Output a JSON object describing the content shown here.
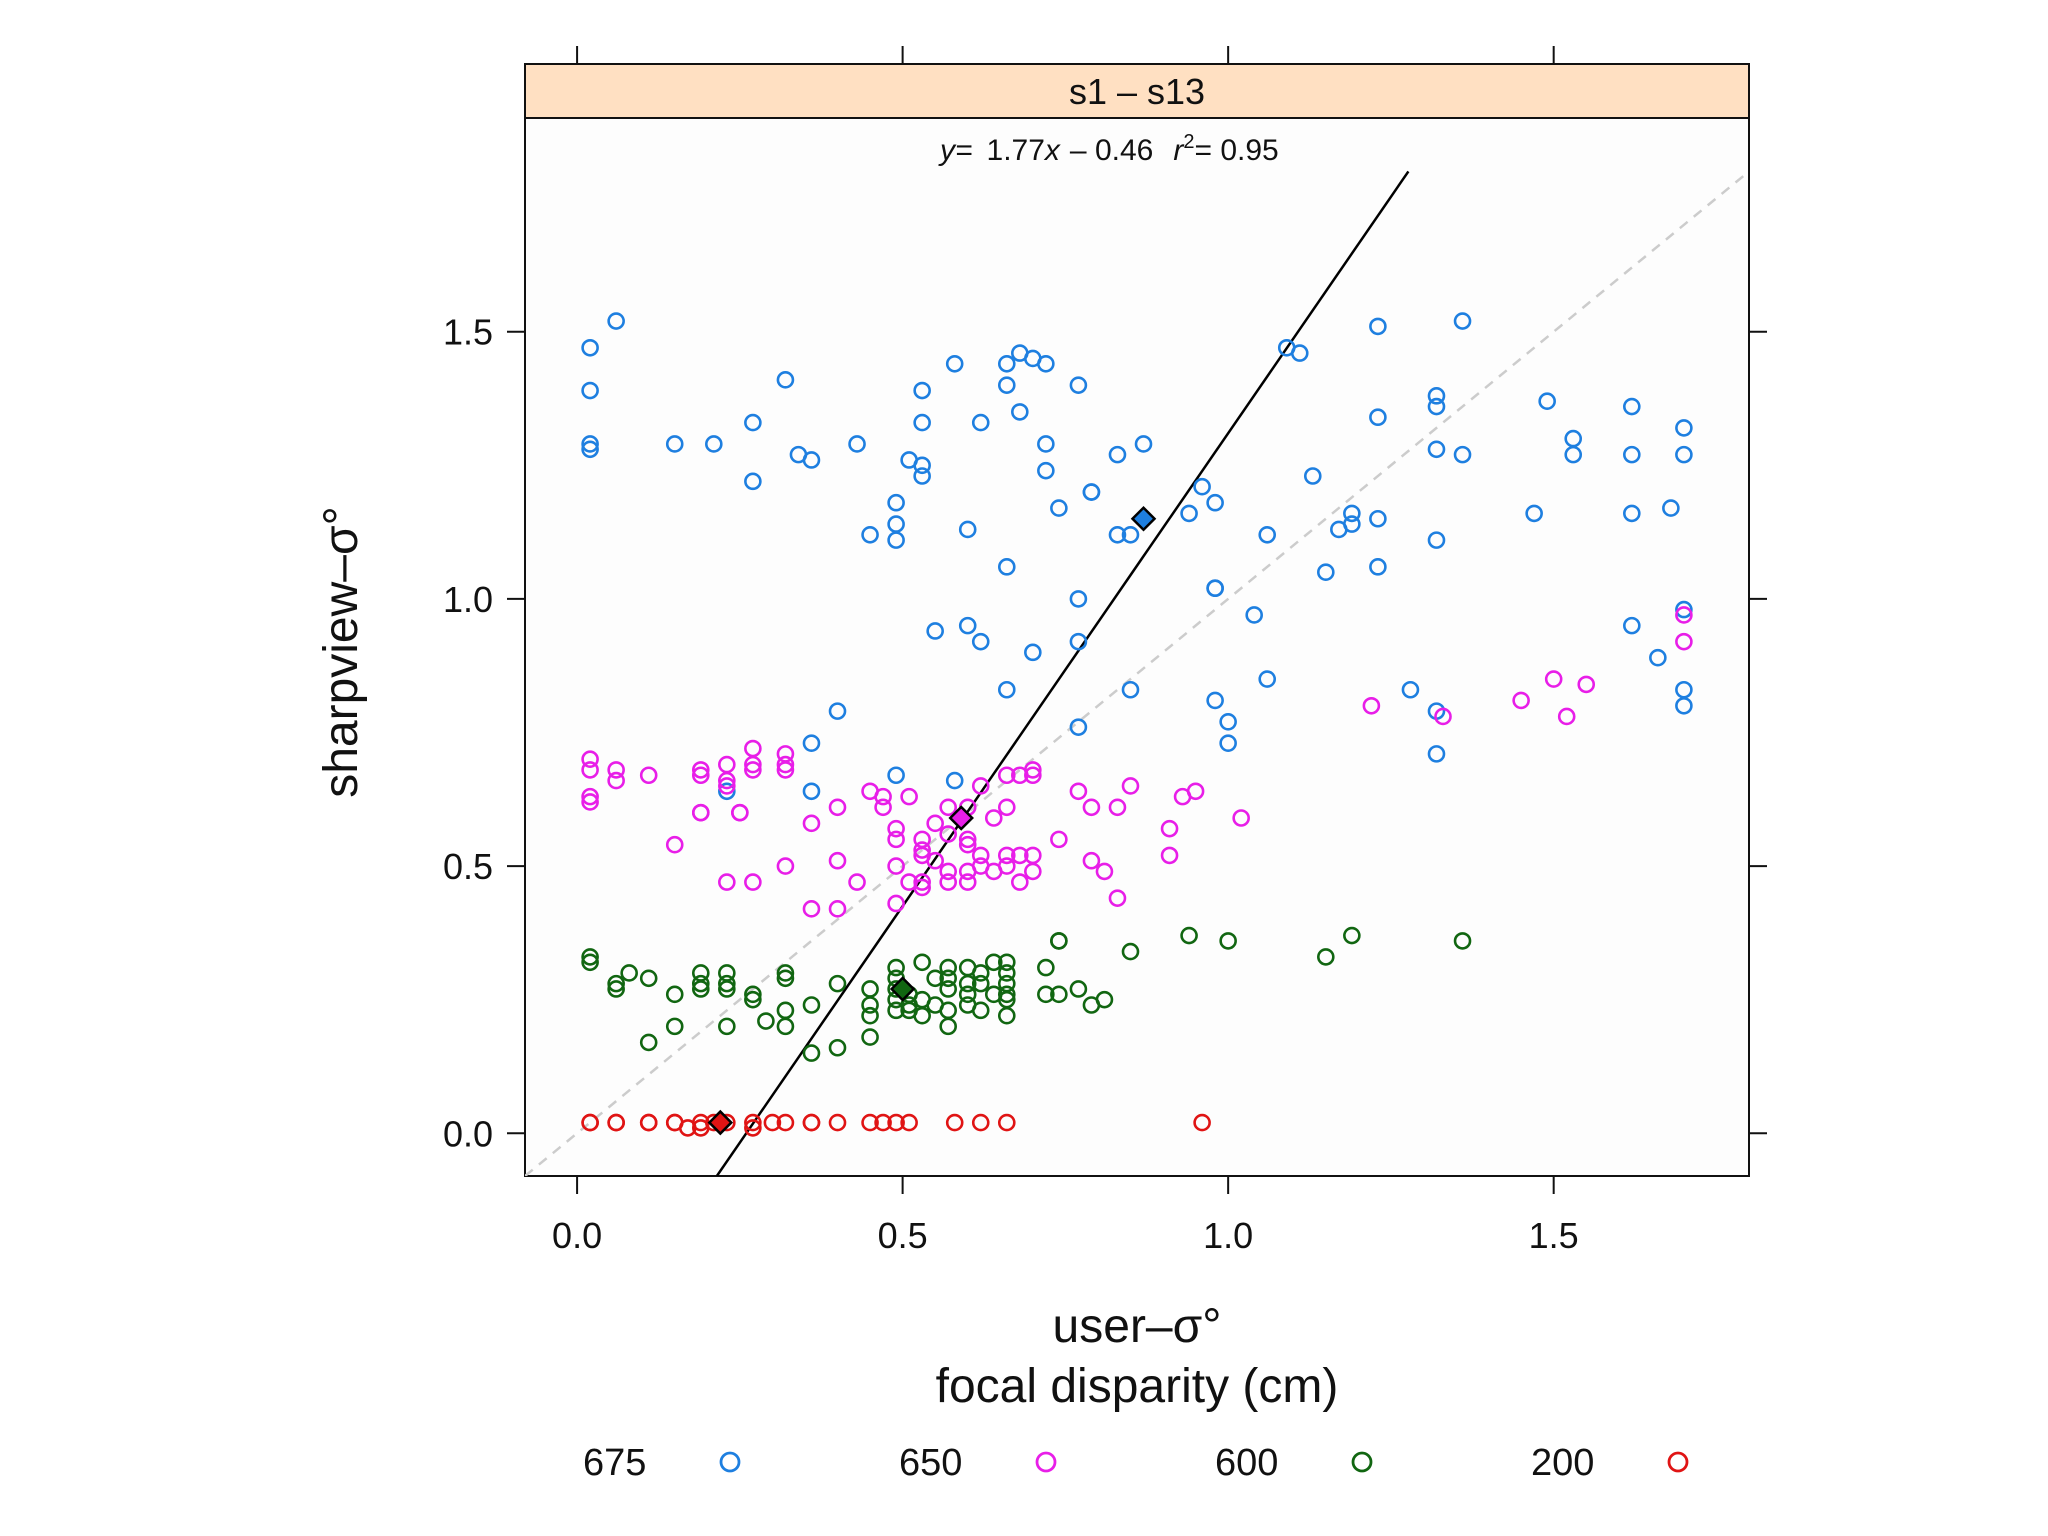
{
  "chart_data": {
    "type": "scatter",
    "strip_label": "s1 – s13",
    "equation": {
      "y_label": "y=",
      "expr": "1.77",
      "x_var": "x",
      "rest": "– 0.46",
      "r_sym": "r",
      "r_exp": "2",
      "r_val": "= 0.95"
    },
    "regression": {
      "slope": 1.77,
      "intercept": -0.46
    },
    "identity_line": true,
    "xlabel": "user–σ°",
    "xlabel2": "focal disparity (cm)",
    "ylabel": "sharpview–σ°",
    "xlim": [
      -0.08,
      1.8
    ],
    "ylim": [
      -0.08,
      1.9
    ],
    "xticks": [
      0.0,
      0.5,
      1.0,
      1.5
    ],
    "xtick_labels": [
      "0.0",
      "0.5",
      "1.0",
      "1.5"
    ],
    "yticks": [
      0.0,
      0.5,
      1.0,
      1.5
    ],
    "ytick_labels": [
      "0.0",
      "0.5",
      "1.0",
      "1.5"
    ],
    "series": [
      {
        "name": "675",
        "color": "#1e7fe0",
        "mean": [
          0.87,
          1.15
        ],
        "points": [
          [
            0.02,
            1.47
          ],
          [
            0.02,
            1.39
          ],
          [
            0.02,
            1.29
          ],
          [
            0.02,
            1.28
          ],
          [
            0.06,
            1.52
          ],
          [
            0.15,
            1.29
          ],
          [
            0.21,
            1.29
          ],
          [
            0.23,
            0.64
          ],
          [
            0.27,
            1.33
          ],
          [
            0.27,
            1.22
          ],
          [
            0.32,
            1.41
          ],
          [
            0.34,
            1.27
          ],
          [
            0.36,
            1.26
          ],
          [
            0.36,
            0.73
          ],
          [
            0.36,
            0.64
          ],
          [
            0.4,
            0.79
          ],
          [
            0.43,
            1.29
          ],
          [
            0.45,
            1.12
          ],
          [
            0.49,
            1.18
          ],
          [
            0.49,
            1.14
          ],
          [
            0.49,
            1.11
          ],
          [
            0.49,
            0.67
          ],
          [
            0.51,
            1.26
          ],
          [
            0.53,
            1.39
          ],
          [
            0.53,
            1.33
          ],
          [
            0.53,
            1.25
          ],
          [
            0.53,
            1.23
          ],
          [
            0.55,
            0.94
          ],
          [
            0.58,
            1.44
          ],
          [
            0.58,
            0.66
          ],
          [
            0.6,
            1.13
          ],
          [
            0.6,
            0.95
          ],
          [
            0.62,
            1.33
          ],
          [
            0.62,
            0.92
          ],
          [
            0.66,
            1.44
          ],
          [
            0.66,
            1.4
          ],
          [
            0.66,
            1.06
          ],
          [
            0.66,
            0.83
          ],
          [
            0.68,
            1.46
          ],
          [
            0.68,
            1.35
          ],
          [
            0.7,
            1.45
          ],
          [
            0.7,
            0.9
          ],
          [
            0.72,
            1.44
          ],
          [
            0.72,
            1.29
          ],
          [
            0.72,
            1.24
          ],
          [
            0.74,
            1.17
          ],
          [
            0.77,
            1.4
          ],
          [
            0.77,
            1.0
          ],
          [
            0.77,
            0.92
          ],
          [
            0.77,
            0.76
          ],
          [
            0.79,
            1.2
          ],
          [
            0.79,
            1.2
          ],
          [
            0.83,
            1.27
          ],
          [
            0.83,
            1.12
          ],
          [
            0.85,
            1.12
          ],
          [
            0.85,
            0.83
          ],
          [
            0.87,
            1.29
          ],
          [
            0.94,
            1.16
          ],
          [
            0.96,
            1.21
          ],
          [
            0.98,
            1.18
          ],
          [
            0.98,
            1.02
          ],
          [
            0.98,
            1.02
          ],
          [
            0.98,
            0.81
          ],
          [
            1.0,
            0.77
          ],
          [
            1.0,
            0.73
          ],
          [
            1.04,
            0.97
          ],
          [
            1.06,
            1.12
          ],
          [
            1.06,
            0.85
          ],
          [
            1.09,
            1.47
          ],
          [
            1.11,
            1.46
          ],
          [
            1.13,
            1.23
          ],
          [
            1.15,
            1.05
          ],
          [
            1.17,
            1.13
          ],
          [
            1.19,
            1.16
          ],
          [
            1.19,
            1.14
          ],
          [
            1.23,
            1.51
          ],
          [
            1.23,
            1.34
          ],
          [
            1.23,
            1.15
          ],
          [
            1.23,
            1.06
          ],
          [
            1.28,
            0.83
          ],
          [
            1.32,
            1.38
          ],
          [
            1.32,
            1.36
          ],
          [
            1.32,
            1.28
          ],
          [
            1.32,
            1.11
          ],
          [
            1.32,
            0.79
          ],
          [
            1.32,
            0.71
          ],
          [
            1.36,
            1.52
          ],
          [
            1.36,
            1.27
          ],
          [
            1.47,
            1.16
          ],
          [
            1.49,
            1.37
          ],
          [
            1.53,
            1.3
          ],
          [
            1.53,
            1.27
          ],
          [
            1.62,
            1.36
          ],
          [
            1.62,
            1.27
          ],
          [
            1.62,
            1.16
          ],
          [
            1.62,
            0.95
          ],
          [
            1.66,
            0.89
          ],
          [
            1.68,
            1.17
          ],
          [
            1.7,
            1.32
          ],
          [
            1.7,
            1.27
          ],
          [
            1.7,
            0.98
          ],
          [
            1.7,
            0.83
          ],
          [
            1.7,
            0.8
          ]
        ]
      },
      {
        "name": "650",
        "color": "#e81ee8",
        "mean": [
          0.59,
          0.59
        ],
        "points": [
          [
            0.02,
            0.7
          ],
          [
            0.02,
            0.68
          ],
          [
            0.02,
            0.63
          ],
          [
            0.02,
            0.62
          ],
          [
            0.06,
            0.68
          ],
          [
            0.06,
            0.66
          ],
          [
            0.11,
            0.67
          ],
          [
            0.15,
            0.54
          ],
          [
            0.19,
            0.68
          ],
          [
            0.19,
            0.67
          ],
          [
            0.19,
            0.6
          ],
          [
            0.19,
            0.6
          ],
          [
            0.23,
            0.69
          ],
          [
            0.23,
            0.66
          ],
          [
            0.23,
            0.65
          ],
          [
            0.23,
            0.47
          ],
          [
            0.25,
            0.6
          ],
          [
            0.25,
            0.6
          ],
          [
            0.27,
            0.72
          ],
          [
            0.27,
            0.69
          ],
          [
            0.27,
            0.68
          ],
          [
            0.27,
            0.47
          ],
          [
            0.32,
            0.71
          ],
          [
            0.32,
            0.69
          ],
          [
            0.32,
            0.68
          ],
          [
            0.32,
            0.5
          ],
          [
            0.36,
            0.58
          ],
          [
            0.36,
            0.42
          ],
          [
            0.4,
            0.61
          ],
          [
            0.4,
            0.51
          ],
          [
            0.4,
            0.42
          ],
          [
            0.43,
            0.47
          ],
          [
            0.45,
            0.64
          ],
          [
            0.47,
            0.63
          ],
          [
            0.47,
            0.61
          ],
          [
            0.49,
            0.57
          ],
          [
            0.49,
            0.55
          ],
          [
            0.49,
            0.5
          ],
          [
            0.49,
            0.43
          ],
          [
            0.51,
            0.63
          ],
          [
            0.51,
            0.47
          ],
          [
            0.53,
            0.55
          ],
          [
            0.53,
            0.53
          ],
          [
            0.53,
            0.52
          ],
          [
            0.53,
            0.47
          ],
          [
            0.53,
            0.46
          ],
          [
            0.55,
            0.58
          ],
          [
            0.55,
            0.51
          ],
          [
            0.57,
            0.61
          ],
          [
            0.57,
            0.56
          ],
          [
            0.57,
            0.49
          ],
          [
            0.57,
            0.47
          ],
          [
            0.6,
            0.61
          ],
          [
            0.6,
            0.55
          ],
          [
            0.6,
            0.54
          ],
          [
            0.6,
            0.49
          ],
          [
            0.6,
            0.47
          ],
          [
            0.62,
            0.65
          ],
          [
            0.62,
            0.52
          ],
          [
            0.62,
            0.5
          ],
          [
            0.64,
            0.59
          ],
          [
            0.64,
            0.49
          ],
          [
            0.66,
            0.67
          ],
          [
            0.66,
            0.61
          ],
          [
            0.66,
            0.52
          ],
          [
            0.66,
            0.5
          ],
          [
            0.68,
            0.67
          ],
          [
            0.68,
            0.52
          ],
          [
            0.68,
            0.47
          ],
          [
            0.7,
            0.68
          ],
          [
            0.7,
            0.67
          ],
          [
            0.7,
            0.52
          ],
          [
            0.7,
            0.49
          ],
          [
            0.74,
            0.55
          ],
          [
            0.77,
            0.64
          ],
          [
            0.79,
            0.61
          ],
          [
            0.79,
            0.51
          ],
          [
            0.81,
            0.49
          ],
          [
            0.83,
            0.61
          ],
          [
            0.83,
            0.44
          ],
          [
            0.85,
            0.65
          ],
          [
            0.91,
            0.57
          ],
          [
            0.91,
            0.52
          ],
          [
            0.93,
            0.63
          ],
          [
            0.95,
            0.64
          ],
          [
            1.02,
            0.59
          ],
          [
            1.22,
            0.8
          ],
          [
            1.33,
            0.78
          ],
          [
            1.45,
            0.81
          ],
          [
            1.5,
            0.85
          ],
          [
            1.52,
            0.78
          ],
          [
            1.55,
            0.84
          ],
          [
            1.7,
            0.92
          ],
          [
            1.7,
            0.97
          ]
        ]
      },
      {
        "name": "600",
        "color": "#116611",
        "mean": [
          0.5,
          0.27
        ],
        "points": [
          [
            0.02,
            0.33
          ],
          [
            0.02,
            0.32
          ],
          [
            0.06,
            0.28
          ],
          [
            0.06,
            0.27
          ],
          [
            0.08,
            0.3
          ],
          [
            0.11,
            0.29
          ],
          [
            0.11,
            0.17
          ],
          [
            0.15,
            0.26
          ],
          [
            0.15,
            0.2
          ],
          [
            0.19,
            0.3
          ],
          [
            0.19,
            0.28
          ],
          [
            0.19,
            0.27
          ],
          [
            0.23,
            0.3
          ],
          [
            0.23,
            0.28
          ],
          [
            0.23,
            0.27
          ],
          [
            0.23,
            0.2
          ],
          [
            0.27,
            0.26
          ],
          [
            0.27,
            0.25
          ],
          [
            0.29,
            0.21
          ],
          [
            0.32,
            0.3
          ],
          [
            0.32,
            0.29
          ],
          [
            0.32,
            0.23
          ],
          [
            0.32,
            0.2
          ],
          [
            0.36,
            0.24
          ],
          [
            0.36,
            0.15
          ],
          [
            0.4,
            0.28
          ],
          [
            0.4,
            0.16
          ],
          [
            0.45,
            0.27
          ],
          [
            0.45,
            0.24
          ],
          [
            0.45,
            0.22
          ],
          [
            0.45,
            0.18
          ],
          [
            0.49,
            0.31
          ],
          [
            0.49,
            0.29
          ],
          [
            0.49,
            0.27
          ],
          [
            0.49,
            0.25
          ],
          [
            0.49,
            0.23
          ],
          [
            0.51,
            0.26
          ],
          [
            0.51,
            0.24
          ],
          [
            0.51,
            0.23
          ],
          [
            0.53,
            0.32
          ],
          [
            0.53,
            0.25
          ],
          [
            0.53,
            0.22
          ],
          [
            0.55,
            0.29
          ],
          [
            0.55,
            0.24
          ],
          [
            0.57,
            0.31
          ],
          [
            0.57,
            0.29
          ],
          [
            0.57,
            0.27
          ],
          [
            0.57,
            0.23
          ],
          [
            0.57,
            0.2
          ],
          [
            0.6,
            0.31
          ],
          [
            0.6,
            0.28
          ],
          [
            0.6,
            0.26
          ],
          [
            0.6,
            0.24
          ],
          [
            0.62,
            0.3
          ],
          [
            0.62,
            0.28
          ],
          [
            0.62,
            0.23
          ],
          [
            0.64,
            0.32
          ],
          [
            0.64,
            0.26
          ],
          [
            0.66,
            0.32
          ],
          [
            0.66,
            0.3
          ],
          [
            0.66,
            0.28
          ],
          [
            0.66,
            0.26
          ],
          [
            0.66,
            0.25
          ],
          [
            0.66,
            0.22
          ],
          [
            0.72,
            0.31
          ],
          [
            0.72,
            0.26
          ],
          [
            0.74,
            0.36
          ],
          [
            0.74,
            0.36
          ],
          [
            0.74,
            0.26
          ],
          [
            0.77,
            0.27
          ],
          [
            0.79,
            0.24
          ],
          [
            0.81,
            0.25
          ],
          [
            0.85,
            0.34
          ],
          [
            0.94,
            0.37
          ],
          [
            1.0,
            0.36
          ],
          [
            1.15,
            0.33
          ],
          [
            1.19,
            0.37
          ],
          [
            1.36,
            0.36
          ]
        ]
      },
      {
        "name": "200",
        "color": "#e01414",
        "mean": [
          0.22,
          0.02
        ],
        "points": [
          [
            0.02,
            0.02
          ],
          [
            0.02,
            0.02
          ],
          [
            0.06,
            0.02
          ],
          [
            0.06,
            0.02
          ],
          [
            0.11,
            0.02
          ],
          [
            0.11,
            0.02
          ],
          [
            0.15,
            0.02
          ],
          [
            0.15,
            0.02
          ],
          [
            0.17,
            0.01
          ],
          [
            0.19,
            0.01
          ],
          [
            0.19,
            0.02
          ],
          [
            0.21,
            0.02
          ],
          [
            0.23,
            0.02
          ],
          [
            0.27,
            0.02
          ],
          [
            0.27,
            0.01
          ],
          [
            0.3,
            0.02
          ],
          [
            0.32,
            0.02
          ],
          [
            0.36,
            0.02
          ],
          [
            0.36,
            0.02
          ],
          [
            0.4,
            0.02
          ],
          [
            0.45,
            0.02
          ],
          [
            0.47,
            0.02
          ],
          [
            0.49,
            0.02
          ],
          [
            0.51,
            0.02
          ],
          [
            0.58,
            0.02
          ],
          [
            0.62,
            0.02
          ],
          [
            0.66,
            0.02
          ],
          [
            0.96,
            0.02
          ]
        ]
      }
    ]
  }
}
